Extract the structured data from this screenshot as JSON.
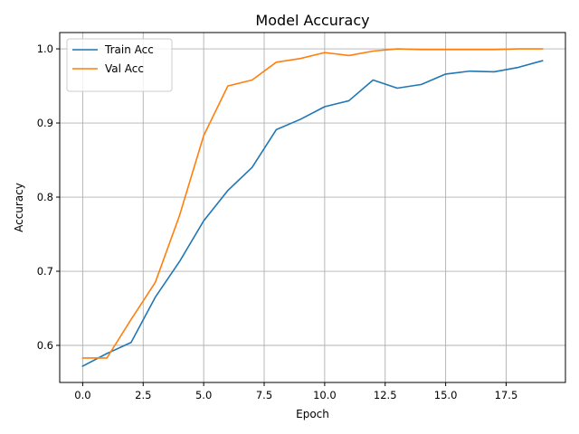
{
  "chart_data": {
    "type": "line",
    "title": "Model Accuracy",
    "xlabel": "Epoch",
    "ylabel": "Accuracy",
    "xlim": [
      -0.95,
      19.95
    ],
    "ylim": [
      0.55,
      1.022
    ],
    "xticks": [
      0.0,
      2.5,
      5.0,
      7.5,
      10.0,
      12.5,
      15.0,
      17.5
    ],
    "xtick_labels": [
      "0.0",
      "2.5",
      "5.0",
      "7.5",
      "10.0",
      "12.5",
      "15.0",
      "17.5"
    ],
    "yticks": [
      0.6,
      0.7,
      0.8,
      0.9,
      1.0
    ],
    "ytick_labels": [
      "0.6",
      "0.7",
      "0.8",
      "0.9",
      "1.0"
    ],
    "grid": true,
    "legend_position": "top-left",
    "x": [
      0,
      1,
      2,
      3,
      4,
      5,
      6,
      7,
      8,
      9,
      10,
      11,
      12,
      13,
      14,
      15,
      16,
      17,
      18,
      19
    ],
    "series": [
      {
        "name": "Train Acc",
        "color": "#1f77b4",
        "values": [
          0.572,
          0.589,
          0.604,
          0.665,
          0.713,
          0.768,
          0.809,
          0.84,
          0.891,
          0.905,
          0.922,
          0.93,
          0.958,
          0.947,
          0.952,
          0.966,
          0.97,
          0.969,
          0.975,
          0.984
        ]
      },
      {
        "name": "Val Acc",
        "color": "#ff7f0e",
        "values": [
          0.583,
          0.583,
          0.635,
          0.685,
          0.775,
          0.883,
          0.95,
          0.958,
          0.982,
          0.987,
          0.995,
          0.991,
          0.997,
          1.0,
          0.999,
          0.999,
          0.999,
          0.999,
          1.0,
          1.0
        ]
      }
    ]
  }
}
